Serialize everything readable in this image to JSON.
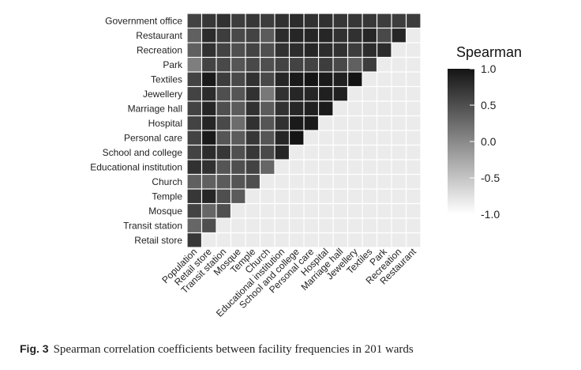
{
  "caption": {
    "label": "Fig. 3",
    "text": "Spearman correlation coefficients between facility frequencies in 201 wards"
  },
  "chart_data": {
    "type": "heatmap",
    "title": "",
    "xlabel": "",
    "ylabel": "",
    "variables": [
      "Population",
      "Retail store",
      "Transit station",
      "Mosque",
      "Temple",
      "Church",
      "Educational institution",
      "School and college",
      "Personal care",
      "Hospital",
      "Marriage hall",
      "Jewellery",
      "Textiles",
      "Park",
      "Recreation",
      "Restaurant",
      "Government office"
    ],
    "x_labels": [
      "Population",
      "Retail store",
      "Transit station",
      "Mosque",
      "Temple",
      "Church",
      "Educational institution",
      "School and college",
      "Personal care",
      "Hospital",
      "Marriage hall",
      "Jewellery",
      "Textiles",
      "Park",
      "Recreation",
      "Restaurant"
    ],
    "y_labels": [
      "Retail store",
      "Transit station",
      "Mosque",
      "Temple",
      "Church",
      "Educational institution",
      "School and college",
      "Personal care",
      "Hospital",
      "Marriage hall",
      "Jewellery",
      "Textiles",
      "Park",
      "Recreation",
      "Restaurant",
      "Government office"
    ],
    "values": [
      [
        0.7
      ],
      [
        0.3,
        0.5
      ],
      [
        0.6,
        0.3,
        0.5
      ],
      [
        0.7,
        0.85,
        0.5,
        0.4
      ],
      [
        0.35,
        0.35,
        0.4,
        0.45,
        0.5
      ],
      [
        0.75,
        0.75,
        0.45,
        0.5,
        0.6,
        0.3
      ],
      [
        0.6,
        0.8,
        0.7,
        0.5,
        0.7,
        0.55,
        0.85
      ],
      [
        0.6,
        0.95,
        0.45,
        0.4,
        0.7,
        0.45,
        0.85,
        1.0
      ],
      [
        0.6,
        0.85,
        0.55,
        0.25,
        0.75,
        0.45,
        0.75,
        0.95,
        0.95
      ],
      [
        0.6,
        0.85,
        0.5,
        0.4,
        0.75,
        0.4,
        0.75,
        0.85,
        0.9,
        0.95
      ],
      [
        0.6,
        0.8,
        0.5,
        0.45,
        0.75,
        0.15,
        0.75,
        0.85,
        0.85,
        0.9,
        0.9
      ],
      [
        0.6,
        0.95,
        0.65,
        0.55,
        0.75,
        0.55,
        0.85,
        0.95,
        1.0,
        0.95,
        0.9,
        1.0
      ],
      [
        0.1,
        0.6,
        0.55,
        0.45,
        0.55,
        0.5,
        0.6,
        0.6,
        0.6,
        0.65,
        0.55,
        0.35,
        0.65
      ],
      [
        0.35,
        0.75,
        0.6,
        0.5,
        0.6,
        0.5,
        0.75,
        0.8,
        0.85,
        0.8,
        0.75,
        0.65,
        0.8,
        0.8
      ],
      [
        0.35,
        0.8,
        0.65,
        0.55,
        0.6,
        0.4,
        0.8,
        0.85,
        0.85,
        0.85,
        0.75,
        0.75,
        0.85,
        0.55,
        0.85
      ],
      [
        0.6,
        0.7,
        0.75,
        0.65,
        0.7,
        0.65,
        0.75,
        0.8,
        0.75,
        0.75,
        0.7,
        0.7,
        0.7,
        0.65,
        0.65,
        0.65
      ]
    ],
    "colorscale": {
      "low_color": "#ffffff",
      "high_color": "#141414",
      "range": [
        -1.0,
        1.0
      ]
    },
    "legend": {
      "title": "Spearman",
      "ticks": [
        "1.0",
        "0.5",
        "0.0",
        "-0.5",
        "-1.0"
      ],
      "tick_values": [
        1.0,
        0.5,
        0.0,
        -0.5,
        -1.0
      ],
      "position": "right"
    },
    "grid": true
  }
}
